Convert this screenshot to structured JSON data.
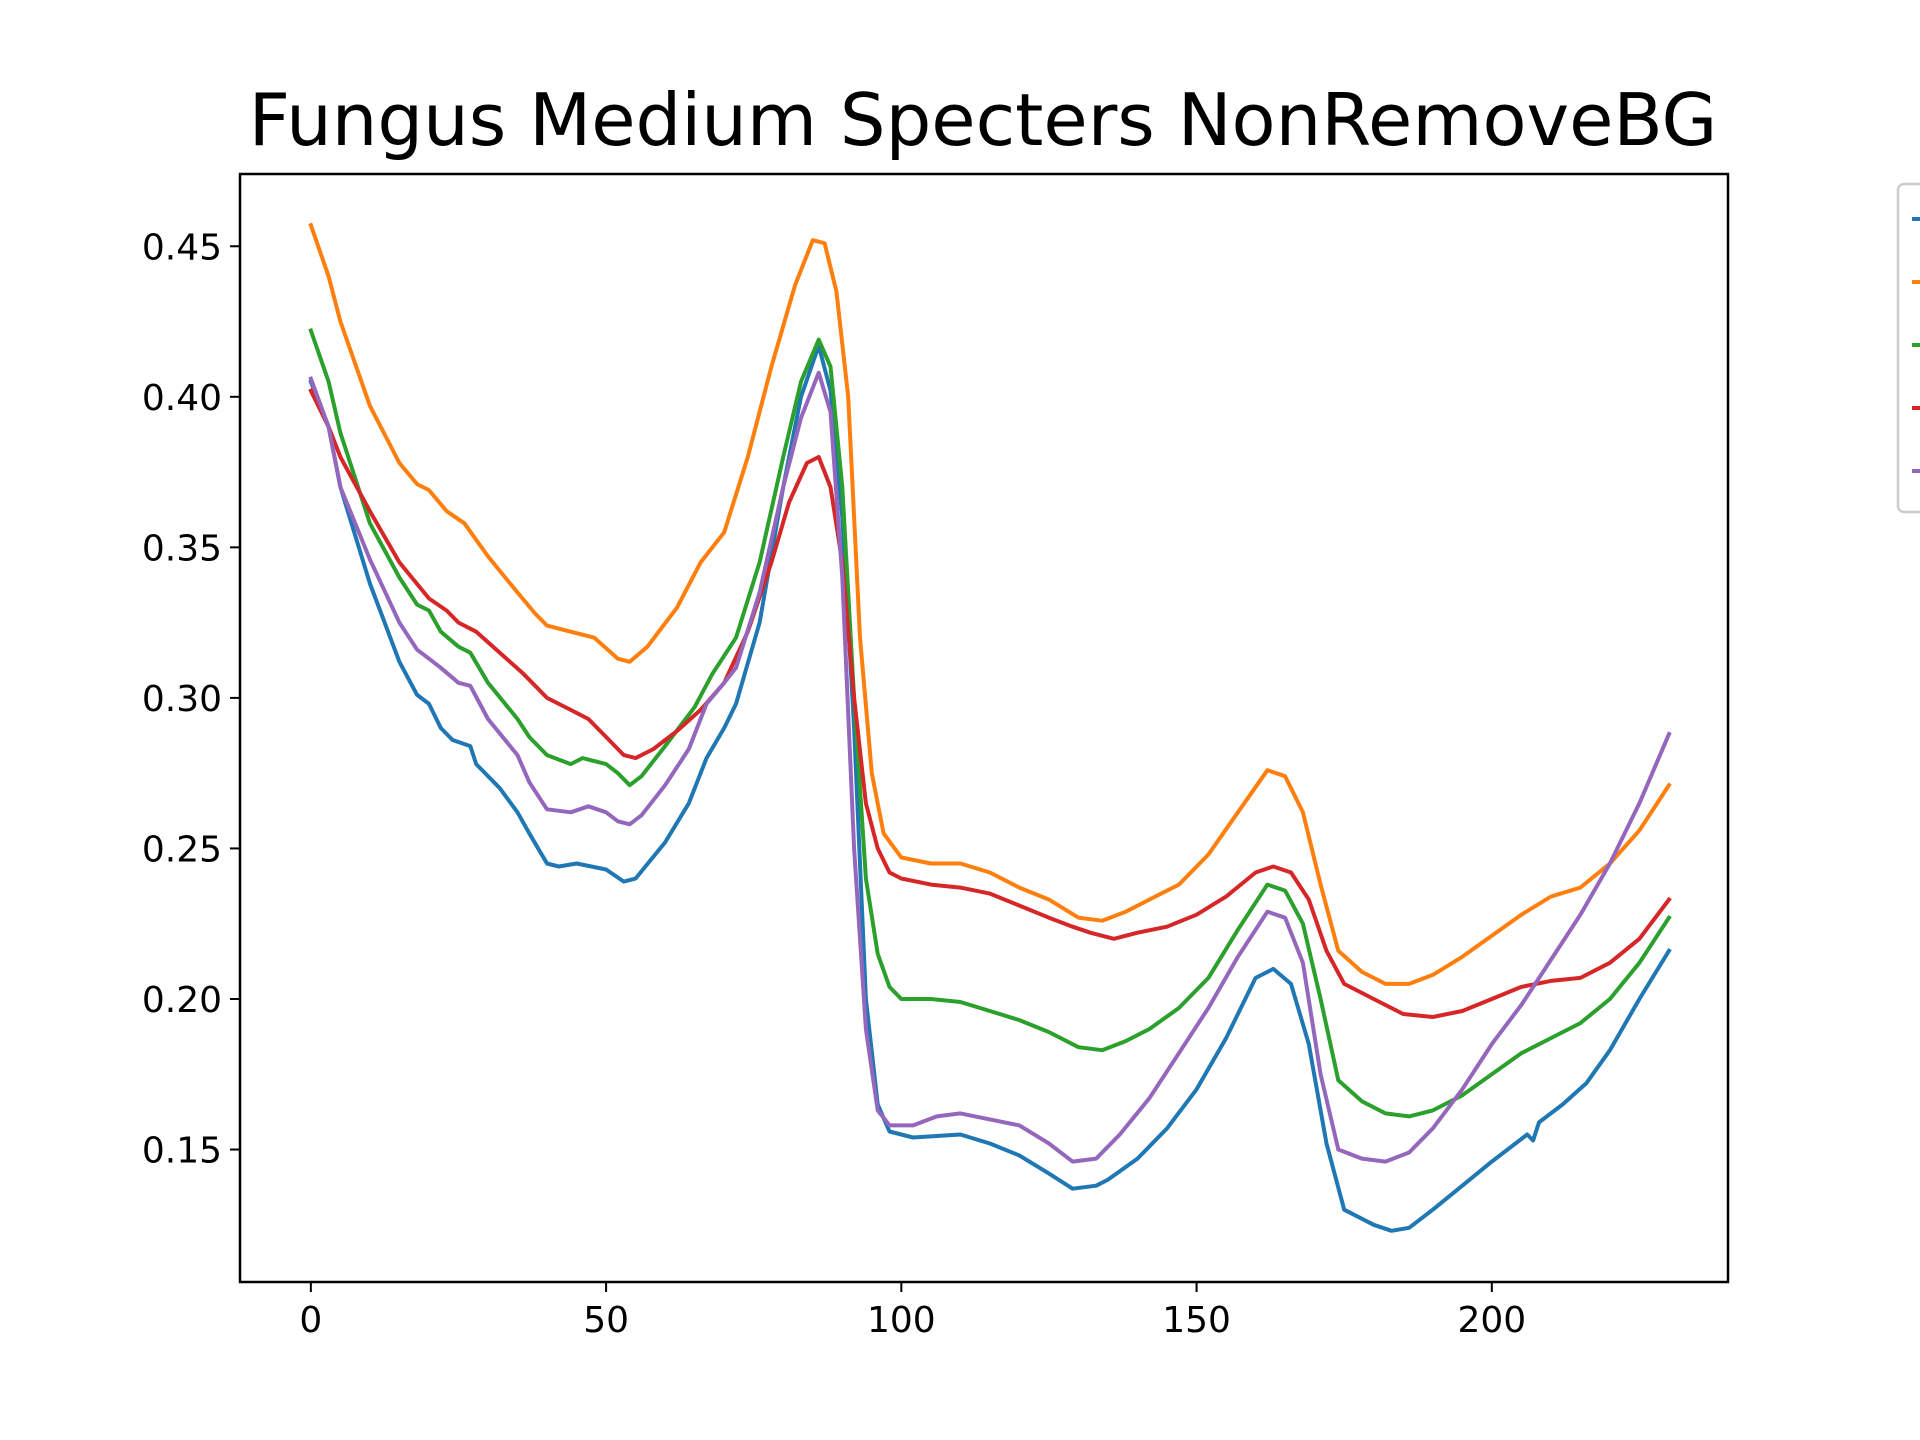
{
  "chart_data": {
    "type": "line",
    "title": "Fungus Medium Specters NonRemoveBG",
    "xlabel": "",
    "ylabel": "",
    "xlim": [
      -12,
      240
    ],
    "ylim": [
      0.106,
      0.474
    ],
    "xticks": [
      0,
      50,
      100,
      150,
      200
    ],
    "yticks": [
      0.15,
      0.2,
      0.25,
      0.3,
      0.35,
      0.4,
      0.45
    ],
    "legend_position": "outside-right",
    "series": [
      {
        "color": "#1f77b4",
        "points": [
          [
            0,
            0.405
          ],
          [
            3,
            0.39
          ],
          [
            5,
            0.37
          ],
          [
            10,
            0.338
          ],
          [
            15,
            0.312
          ],
          [
            18,
            0.301
          ],
          [
            20,
            0.298
          ],
          [
            22,
            0.29
          ],
          [
            24,
            0.286
          ],
          [
            27,
            0.284
          ],
          [
            28,
            0.278
          ],
          [
            32,
            0.27
          ],
          [
            35,
            0.262
          ],
          [
            37,
            0.255
          ],
          [
            40,
            0.245
          ],
          [
            42,
            0.244
          ],
          [
            45,
            0.245
          ],
          [
            50,
            0.243
          ],
          [
            53,
            0.239
          ],
          [
            55,
            0.24
          ],
          [
            60,
            0.252
          ],
          [
            64,
            0.265
          ],
          [
            67,
            0.28
          ],
          [
            70,
            0.29
          ],
          [
            72,
            0.298
          ],
          [
            76,
            0.325
          ],
          [
            80,
            0.37
          ],
          [
            83,
            0.4
          ],
          [
            86,
            0.417
          ],
          [
            88,
            0.402
          ],
          [
            90,
            0.36
          ],
          [
            92,
            0.29
          ],
          [
            94,
            0.2
          ],
          [
            96,
            0.165
          ],
          [
            98,
            0.156
          ],
          [
            102,
            0.154
          ],
          [
            110,
            0.155
          ],
          [
            115,
            0.152
          ],
          [
            120,
            0.148
          ],
          [
            125,
            0.142
          ],
          [
            129,
            0.137
          ],
          [
            133,
            0.138
          ],
          [
            135,
            0.14
          ],
          [
            140,
            0.147
          ],
          [
            145,
            0.157
          ],
          [
            150,
            0.17
          ],
          [
            155,
            0.187
          ],
          [
            160,
            0.207
          ],
          [
            163,
            0.21
          ],
          [
            166,
            0.205
          ],
          [
            169,
            0.185
          ],
          [
            172,
            0.152
          ],
          [
            175,
            0.13
          ],
          [
            180,
            0.125
          ],
          [
            183,
            0.123
          ],
          [
            186,
            0.124
          ],
          [
            190,
            0.13
          ],
          [
            195,
            0.138
          ],
          [
            200,
            0.146
          ],
          [
            206,
            0.155
          ],
          [
            207,
            0.153
          ],
          [
            208,
            0.159
          ],
          [
            212,
            0.165
          ],
          [
            216,
            0.172
          ],
          [
            220,
            0.183
          ],
          [
            225,
            0.2
          ],
          [
            230,
            0.216
          ]
        ]
      },
      {
        "color": "#ff7f0e",
        "points": [
          [
            0,
            0.457
          ],
          [
            3,
            0.44
          ],
          [
            5,
            0.425
          ],
          [
            10,
            0.397
          ],
          [
            15,
            0.378
          ],
          [
            18,
            0.371
          ],
          [
            20,
            0.369
          ],
          [
            23,
            0.362
          ],
          [
            26,
            0.358
          ],
          [
            30,
            0.347
          ],
          [
            35,
            0.335
          ],
          [
            38,
            0.328
          ],
          [
            40,
            0.324
          ],
          [
            44,
            0.322
          ],
          [
            48,
            0.32
          ],
          [
            52,
            0.313
          ],
          [
            54,
            0.312
          ],
          [
            57,
            0.317
          ],
          [
            62,
            0.33
          ],
          [
            66,
            0.345
          ],
          [
            70,
            0.355
          ],
          [
            74,
            0.38
          ],
          [
            78,
            0.41
          ],
          [
            82,
            0.437
          ],
          [
            85,
            0.452
          ],
          [
            87,
            0.451
          ],
          [
            89,
            0.435
          ],
          [
            91,
            0.4
          ],
          [
            93,
            0.32
          ],
          [
            95,
            0.275
          ],
          [
            97,
            0.255
          ],
          [
            100,
            0.247
          ],
          [
            105,
            0.245
          ],
          [
            110,
            0.245
          ],
          [
            115,
            0.242
          ],
          [
            120,
            0.237
          ],
          [
            125,
            0.233
          ],
          [
            130,
            0.227
          ],
          [
            134,
            0.226
          ],
          [
            138,
            0.229
          ],
          [
            142,
            0.233
          ],
          [
            147,
            0.238
          ],
          [
            152,
            0.248
          ],
          [
            157,
            0.262
          ],
          [
            162,
            0.276
          ],
          [
            165,
            0.274
          ],
          [
            168,
            0.262
          ],
          [
            171,
            0.238
          ],
          [
            174,
            0.216
          ],
          [
            178,
            0.209
          ],
          [
            182,
            0.205
          ],
          [
            186,
            0.205
          ],
          [
            190,
            0.208
          ],
          [
            195,
            0.214
          ],
          [
            200,
            0.221
          ],
          [
            205,
            0.228
          ],
          [
            210,
            0.234
          ],
          [
            215,
            0.237
          ],
          [
            220,
            0.245
          ],
          [
            225,
            0.256
          ],
          [
            230,
            0.271
          ]
        ]
      },
      {
        "color": "#2ca02c",
        "points": [
          [
            0,
            0.422
          ],
          [
            3,
            0.405
          ],
          [
            5,
            0.388
          ],
          [
            10,
            0.358
          ],
          [
            15,
            0.34
          ],
          [
            18,
            0.331
          ],
          [
            20,
            0.329
          ],
          [
            22,
            0.322
          ],
          [
            25,
            0.317
          ],
          [
            27,
            0.315
          ],
          [
            30,
            0.305
          ],
          [
            35,
            0.293
          ],
          [
            37,
            0.287
          ],
          [
            40,
            0.281
          ],
          [
            44,
            0.278
          ],
          [
            46,
            0.28
          ],
          [
            50,
            0.278
          ],
          [
            52,
            0.275
          ],
          [
            54,
            0.271
          ],
          [
            56,
            0.274
          ],
          [
            60,
            0.284
          ],
          [
            65,
            0.297
          ],
          [
            68,
            0.308
          ],
          [
            72,
            0.32
          ],
          [
            76,
            0.345
          ],
          [
            80,
            0.38
          ],
          [
            83,
            0.405
          ],
          [
            86,
            0.419
          ],
          [
            88,
            0.41
          ],
          [
            90,
            0.37
          ],
          [
            92,
            0.3
          ],
          [
            94,
            0.24
          ],
          [
            96,
            0.215
          ],
          [
            98,
            0.204
          ],
          [
            100,
            0.2
          ],
          [
            105,
            0.2
          ],
          [
            110,
            0.199
          ],
          [
            115,
            0.196
          ],
          [
            120,
            0.193
          ],
          [
            125,
            0.189
          ],
          [
            130,
            0.184
          ],
          [
            134,
            0.183
          ],
          [
            138,
            0.186
          ],
          [
            142,
            0.19
          ],
          [
            147,
            0.197
          ],
          [
            152,
            0.207
          ],
          [
            157,
            0.223
          ],
          [
            162,
            0.238
          ],
          [
            165,
            0.236
          ],
          [
            168,
            0.225
          ],
          [
            171,
            0.2
          ],
          [
            174,
            0.173
          ],
          [
            178,
            0.166
          ],
          [
            182,
            0.162
          ],
          [
            186,
            0.161
          ],
          [
            190,
            0.163
          ],
          [
            195,
            0.168
          ],
          [
            200,
            0.175
          ],
          [
            205,
            0.182
          ],
          [
            210,
            0.187
          ],
          [
            215,
            0.192
          ],
          [
            220,
            0.2
          ],
          [
            225,
            0.212
          ],
          [
            230,
            0.227
          ]
        ]
      },
      {
        "color": "#d62728",
        "points": [
          [
            0,
            0.402
          ],
          [
            3,
            0.39
          ],
          [
            5,
            0.38
          ],
          [
            10,
            0.362
          ],
          [
            15,
            0.345
          ],
          [
            20,
            0.333
          ],
          [
            23,
            0.329
          ],
          [
            25,
            0.325
          ],
          [
            28,
            0.322
          ],
          [
            32,
            0.315
          ],
          [
            36,
            0.308
          ],
          [
            40,
            0.3
          ],
          [
            44,
            0.296
          ],
          [
            47,
            0.293
          ],
          [
            50,
            0.287
          ],
          [
            53,
            0.281
          ],
          [
            55,
            0.28
          ],
          [
            58,
            0.283
          ],
          [
            62,
            0.289
          ],
          [
            66,
            0.296
          ],
          [
            70,
            0.305
          ],
          [
            74,
            0.322
          ],
          [
            78,
            0.345
          ],
          [
            81,
            0.365
          ],
          [
            84,
            0.378
          ],
          [
            86,
            0.38
          ],
          [
            88,
            0.37
          ],
          [
            90,
            0.345
          ],
          [
            92,
            0.3
          ],
          [
            94,
            0.265
          ],
          [
            96,
            0.25
          ],
          [
            98,
            0.242
          ],
          [
            100,
            0.24
          ],
          [
            105,
            0.238
          ],
          [
            110,
            0.237
          ],
          [
            115,
            0.235
          ],
          [
            120,
            0.231
          ],
          [
            125,
            0.227
          ],
          [
            129,
            0.224
          ],
          [
            132,
            0.222
          ],
          [
            136,
            0.22
          ],
          [
            140,
            0.222
          ],
          [
            145,
            0.224
          ],
          [
            150,
            0.228
          ],
          [
            155,
            0.234
          ],
          [
            160,
            0.242
          ],
          [
            163,
            0.244
          ],
          [
            166,
            0.242
          ],
          [
            169,
            0.233
          ],
          [
            172,
            0.216
          ],
          [
            175,
            0.205
          ],
          [
            180,
            0.2
          ],
          [
            185,
            0.195
          ],
          [
            190,
            0.194
          ],
          [
            195,
            0.196
          ],
          [
            200,
            0.2
          ],
          [
            205,
            0.204
          ],
          [
            210,
            0.206
          ],
          [
            215,
            0.207
          ],
          [
            220,
            0.212
          ],
          [
            225,
            0.22
          ],
          [
            230,
            0.233
          ]
        ]
      },
      {
        "color": "#9467bd",
        "points": [
          [
            0,
            0.406
          ],
          [
            3,
            0.39
          ],
          [
            5,
            0.37
          ],
          [
            10,
            0.346
          ],
          [
            15,
            0.325
          ],
          [
            18,
            0.316
          ],
          [
            20,
            0.313
          ],
          [
            22,
            0.31
          ],
          [
            25,
            0.305
          ],
          [
            27,
            0.304
          ],
          [
            30,
            0.293
          ],
          [
            35,
            0.281
          ],
          [
            37,
            0.272
          ],
          [
            40,
            0.263
          ],
          [
            44,
            0.262
          ],
          [
            47,
            0.264
          ],
          [
            50,
            0.262
          ],
          [
            52,
            0.259
          ],
          [
            54,
            0.258
          ],
          [
            56,
            0.261
          ],
          [
            60,
            0.271
          ],
          [
            64,
            0.283
          ],
          [
            67,
            0.298
          ],
          [
            70,
            0.305
          ],
          [
            72,
            0.31
          ],
          [
            76,
            0.335
          ],
          [
            80,
            0.37
          ],
          [
            83,
            0.393
          ],
          [
            86,
            0.408
          ],
          [
            88,
            0.395
          ],
          [
            90,
            0.34
          ],
          [
            92,
            0.25
          ],
          [
            94,
            0.19
          ],
          [
            96,
            0.163
          ],
          [
            98,
            0.158
          ],
          [
            102,
            0.158
          ],
          [
            106,
            0.161
          ],
          [
            110,
            0.162
          ],
          [
            115,
            0.16
          ],
          [
            120,
            0.158
          ],
          [
            125,
            0.152
          ],
          [
            129,
            0.146
          ],
          [
            133,
            0.147
          ],
          [
            137,
            0.155
          ],
          [
            142,
            0.167
          ],
          [
            147,
            0.182
          ],
          [
            152,
            0.197
          ],
          [
            157,
            0.214
          ],
          [
            162,
            0.229
          ],
          [
            165,
            0.227
          ],
          [
            168,
            0.212
          ],
          [
            171,
            0.175
          ],
          [
            174,
            0.15
          ],
          [
            178,
            0.147
          ],
          [
            182,
            0.146
          ],
          [
            186,
            0.149
          ],
          [
            190,
            0.157
          ],
          [
            195,
            0.17
          ],
          [
            200,
            0.185
          ],
          [
            205,
            0.198
          ],
          [
            209,
            0.21
          ],
          [
            215,
            0.228
          ],
          [
            220,
            0.245
          ],
          [
            225,
            0.265
          ],
          [
            230,
            0.288
          ]
        ]
      }
    ]
  }
}
